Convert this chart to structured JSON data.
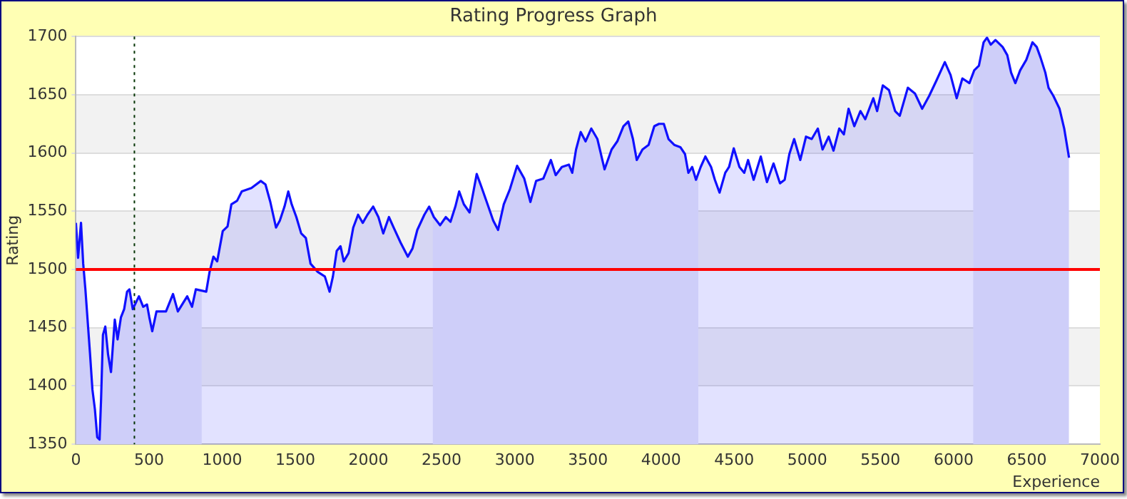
{
  "chart_data": {
    "type": "area",
    "title": "Rating Progress Graph",
    "xlabel": "Experience",
    "ylabel": "Rating",
    "x": [
      0,
      15,
      35,
      50,
      65,
      97,
      113,
      130,
      146,
      162,
      172,
      185,
      201,
      220,
      240,
      266,
      285,
      308,
      330,
      350,
      366,
      389,
      431,
      460,
      486,
      502,
      522,
      551,
      616,
      664,
      697,
      761,
      794,
      820,
      891,
      914,
      940,
      966,
      1004,
      1037,
      1063,
      1102,
      1134,
      1200,
      1264,
      1296,
      1329,
      1368,
      1394,
      1426,
      1452,
      1475,
      1507,
      1540,
      1572,
      1604,
      1653,
      1702,
      1734,
      1757,
      1783,
      1809,
      1831,
      1864,
      1896,
      1929,
      1961,
      1993,
      2032,
      2068,
      2101,
      2140,
      2172,
      2220,
      2269,
      2301,
      2334,
      2382,
      2415,
      2447,
      2490,
      2529,
      2561,
      2594,
      2620,
      2652,
      2691,
      2740,
      2772,
      2814,
      2853,
      2886,
      2925,
      2967,
      3016,
      3065,
      3107,
      3146,
      3195,
      3247,
      3280,
      3322,
      3370,
      3393,
      3419,
      3451,
      3484,
      3523,
      3565,
      3614,
      3662,
      3701,
      3743,
      3776,
      3808,
      3834,
      3873,
      3915,
      3954,
      3986,
      4019,
      4051,
      4090,
      4132,
      4164,
      4187,
      4213,
      4239,
      4271,
      4303,
      4342,
      4368,
      4400,
      4439,
      4465,
      4497,
      4536,
      4569,
      4595,
      4633,
      4682,
      4724,
      4769,
      4813,
      4845,
      4877,
      4910,
      4952,
      4991,
      5030,
      5072,
      5104,
      5146,
      5179,
      5218,
      5250,
      5282,
      5321,
      5363,
      5396,
      5451,
      5477,
      5516,
      5558,
      5600,
      5632,
      5687,
      5736,
      5785,
      5833,
      5882,
      5940,
      5979,
      6021,
      6060,
      6108,
      6141,
      6173,
      6205,
      6228,
      6254,
      6286,
      6335,
      6367,
      6393,
      6422,
      6455,
      6497,
      6539,
      6568,
      6594,
      6627,
      6649,
      6682,
      6724,
      6756,
      6789
    ],
    "series": [
      {
        "color": "#1010ff",
        "values": [
          1540,
          1510,
          1540,
          1505,
          1483,
          1427,
          1397,
          1380,
          1356,
          1354,
          1388,
          1444,
          1451,
          1427,
          1412,
          1457,
          1440,
          1459,
          1466,
          1481,
          1483,
          1466,
          1477,
          1468,
          1470,
          1459,
          1447,
          1464,
          1464,
          1479,
          1464,
          1477,
          1468,
          1483,
          1481,
          1498,
          1511,
          1507,
          1533,
          1537,
          1556,
          1559,
          1567,
          1570,
          1576,
          1573,
          1558,
          1536,
          1542,
          1554,
          1567,
          1556,
          1545,
          1531,
          1527,
          1505,
          1498,
          1494,
          1481,
          1494,
          1516,
          1520,
          1507,
          1514,
          1536,
          1547,
          1540,
          1547,
          1554,
          1545,
          1531,
          1545,
          1536,
          1523,
          1511,
          1518,
          1534,
          1547,
          1554,
          1545,
          1538,
          1545,
          1541,
          1554,
          1567,
          1556,
          1549,
          1582,
          1571,
          1556,
          1542,
          1534,
          1556,
          1569,
          1589,
          1578,
          1558,
          1576,
          1578,
          1594,
          1581,
          1588,
          1590,
          1583,
          1603,
          1618,
          1610,
          1621,
          1612,
          1586,
          1603,
          1610,
          1623,
          1627,
          1612,
          1594,
          1603,
          1607,
          1623,
          1625,
          1625,
          1612,
          1607,
          1605,
          1599,
          1583,
          1588,
          1577,
          1588,
          1597,
          1588,
          1577,
          1566,
          1583,
          1588,
          1604,
          1588,
          1583,
          1594,
          1577,
          1597,
          1575,
          1591,
          1574,
          1577,
          1599,
          1612,
          1594,
          1614,
          1612,
          1621,
          1603,
          1614,
          1602,
          1621,
          1616,
          1638,
          1623,
          1636,
          1629,
          1647,
          1636,
          1658,
          1654,
          1636,
          1632,
          1656,
          1651,
          1638,
          1649,
          1662,
          1678,
          1667,
          1647,
          1664,
          1660,
          1671,
          1675,
          1695,
          1699,
          1693,
          1697,
          1691,
          1684,
          1669,
          1660,
          1671,
          1680,
          1695,
          1691,
          1682,
          1669,
          1656,
          1649,
          1638,
          1621,
          1596
        ]
      }
    ],
    "xlim": [
      0,
      7000
    ],
    "xticks": [
      0,
      500,
      1000,
      1500,
      2000,
      2500,
      3000,
      3500,
      4000,
      4500,
      5000,
      5500,
      6000,
      6500,
      7000
    ],
    "ylim": [
      1350,
      1700
    ],
    "yticks": [
      1350,
      1400,
      1450,
      1500,
      1550,
      1600,
      1650,
      1700
    ],
    "grid": "y",
    "ref_lines": [
      {
        "axis": "y",
        "value": 1500,
        "color": "#ff0000",
        "line_style": "solid"
      },
      {
        "axis": "x",
        "value": 400,
        "color": "#003300",
        "line_style": "dotted"
      }
    ],
    "bands": [
      {
        "axis": "x",
        "from": 0,
        "to": 860,
        "color": "#e9e9f9"
      },
      {
        "axis": "x",
        "from": 2440,
        "to": 4255,
        "color": "#e9e9f9"
      },
      {
        "axis": "x",
        "from": 6134,
        "to": 6789,
        "color": "#e9e9f9"
      }
    ]
  }
}
